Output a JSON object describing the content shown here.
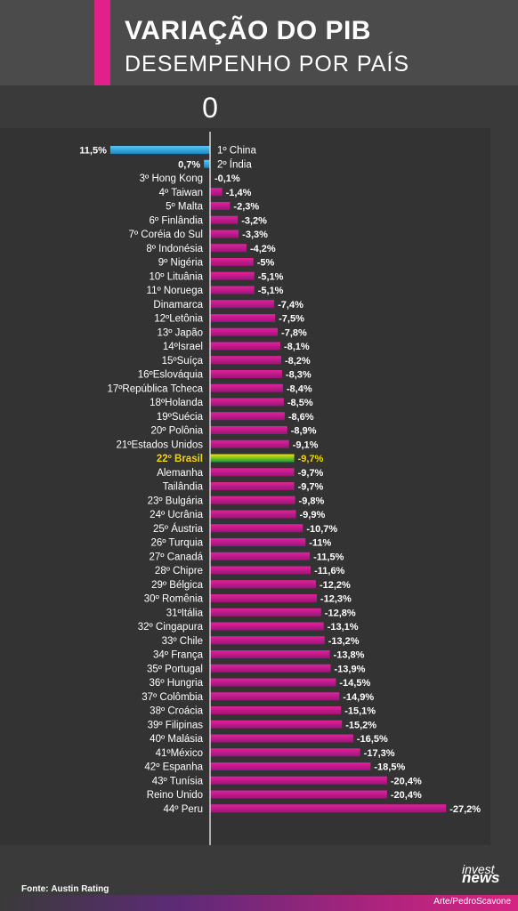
{
  "header": {
    "title": "VARIAÇÃO DO PIB",
    "subtitle": "DESEMPENHO POR PAÍS"
  },
  "footer": {
    "source_label": "Fonte:",
    "source_name": "Austin Rating",
    "credit": "Arte/PedroScavone",
    "logo_top": "invest",
    "logo_bottom": "news"
  },
  "colors": {
    "accent": "#e0218a",
    "positive_bar": "#1fa3dd",
    "negative_bar": "#c0198e",
    "highlight_text": "#f5d400",
    "brazil_bar_top": "#f2e400",
    "brazil_bar_bottom": "#13973a"
  },
  "chart_data": {
    "type": "bar",
    "orientation": "horizontal",
    "zero_label": "0",
    "unit": "%",
    "highlight": "22º Brasil",
    "categories": [
      "1º China",
      "2º Índia",
      "3º Hong Kong",
      "4º Taiwan",
      "5º Malta",
      "6º Finlândia",
      "7º Coréia do Sul",
      "8º Indonésia",
      "9º Nigéria",
      "10º Lituânia",
      "11º Noruega",
      "Dinamarca",
      "12ºLetônia",
      "13º Japão",
      "14ºIsrael",
      "15ºSuíça",
      "16ºEslováquia",
      "17ºRepública Tcheca",
      "18ºHolanda",
      "19ºSuécia",
      "20º Polônia",
      "21ºEstados Unidos",
      "22º Brasil",
      "Alemanha",
      "Tailândia",
      "23º Bulgária",
      "24º Ucrânia",
      "25º Áustria",
      "26º Turquia",
      "27º Canadá",
      "28º Chipre",
      "29º Bélgica",
      "30º Romênia",
      "31ºItália",
      "32º Cingapura",
      "33º Chile",
      "34º França",
      "35º Portugal",
      "36º Hungria",
      "37º Colômbia",
      "38º Croácia",
      "39º Filipinas",
      "40º Malásia",
      "41ºMéxico",
      "42º Espanha",
      "43º Tunísia",
      "Reino Unido",
      "44º Peru"
    ],
    "values": [
      11.5,
      0.7,
      -0.1,
      -1.4,
      -2.3,
      -3.2,
      -3.3,
      -4.2,
      -5,
      -5.1,
      -5.1,
      -7.4,
      -7.5,
      -7.8,
      -8.1,
      -8.2,
      -8.3,
      -8.4,
      -8.5,
      -8.6,
      -8.9,
      -9.1,
      -9.7,
      -9.7,
      -9.7,
      -9.8,
      -9.9,
      -10.7,
      -11,
      -11.5,
      -11.6,
      -12.2,
      -12.3,
      -12.8,
      -13.1,
      -13.2,
      -13.8,
      -13.9,
      -14.5,
      -14.9,
      -15.1,
      -15.2,
      -16.5,
      -17.3,
      -18.5,
      -20.4,
      -20.4,
      -27.2
    ],
    "value_labels": [
      "11,5%",
      "0,7%",
      "-0,1%",
      "-1,4%",
      "-2,3%",
      "-3,2%",
      "-3,3%",
      "-4,2%",
      "-5%",
      "-5,1%",
      "-5,1%",
      "-7,4%",
      "-7,5%",
      "-7,8%",
      "-8,1%",
      "-8,2%",
      "-8,3%",
      "-8,4%",
      "-8,5%",
      "-8,6%",
      "-8,9%",
      "-9,1%",
      "-9,7%",
      "-9,7%",
      "-9,7%",
      "-9,8%",
      "-9,9%",
      "-10,7%",
      "-11%",
      "-11,5%",
      "-11,6%",
      "-12,2%",
      "-12,3%",
      "-12,8%",
      "-13,1%",
      "-13,2%",
      "-13,8%",
      "-13,9%",
      "-14,5%",
      "-14,9%",
      "-15,1%",
      "-15,2%",
      "-16,5%",
      "-17,3%",
      "-18,5%",
      "-20,4%",
      "-20,4%",
      "-27,2%"
    ]
  }
}
